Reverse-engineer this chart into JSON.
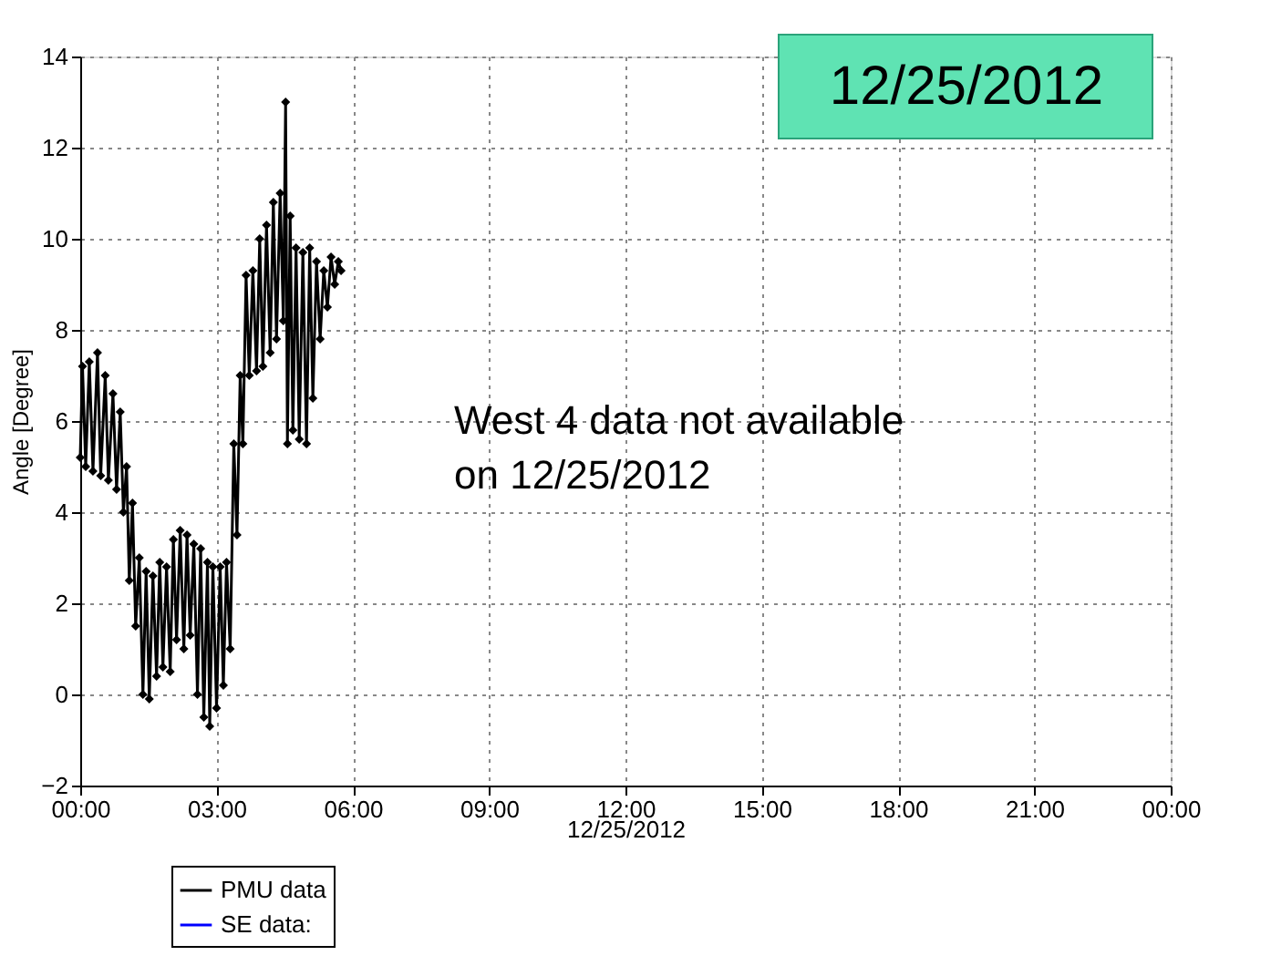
{
  "chart_data": {
    "type": "line",
    "xlabel": "12/25/2012",
    "ylabel": "Angle [Degree]",
    "annotations": [
      "12/25/2012",
      "West 4 data not available\non 12/25/2012"
    ],
    "xlim": [
      0,
      24
    ],
    "xticks": [
      {
        "value": 0,
        "label": "00:00"
      },
      {
        "value": 3,
        "label": "03:00"
      },
      {
        "value": 6,
        "label": "06:00"
      },
      {
        "value": 9,
        "label": "09:00"
      },
      {
        "value": 12,
        "label": "12:00"
      },
      {
        "value": 15,
        "label": "15:00"
      },
      {
        "value": 18,
        "label": "18:00"
      },
      {
        "value": 21,
        "label": "21:00"
      },
      {
        "value": 24,
        "label": "00:00"
      }
    ],
    "ylim": [
      -2,
      14
    ],
    "yticks": [
      -2,
      0,
      2,
      4,
      6,
      8,
      10,
      12,
      14
    ],
    "grid": true,
    "legend": "bottom",
    "marker": "diamond",
    "line_style": "solid",
    "series": [
      {
        "name": "PMU data",
        "color": "#000000",
        "x": [
          0.0,
          0.05,
          0.12,
          0.2,
          0.28,
          0.38,
          0.45,
          0.55,
          0.62,
          0.72,
          0.8,
          0.88,
          0.95,
          1.02,
          1.08,
          1.15,
          1.22,
          1.3,
          1.38,
          1.45,
          1.52,
          1.6,
          1.68,
          1.75,
          1.82,
          1.9,
          1.98,
          2.05,
          2.12,
          2.2,
          2.28,
          2.35,
          2.42,
          2.5,
          2.58,
          2.65,
          2.72,
          2.8,
          2.85,
          2.92,
          3.0,
          3.08,
          3.15,
          3.22,
          3.3,
          3.38,
          3.45,
          3.52,
          3.58,
          3.65,
          3.72,
          3.8,
          3.88,
          3.95,
          4.02,
          4.1,
          4.18,
          4.25,
          4.32,
          4.4,
          4.47,
          4.52,
          4.56,
          4.62,
          4.68,
          4.75,
          4.82,
          4.9,
          4.98,
          5.05,
          5.12,
          5.2,
          5.28,
          5.36,
          5.44,
          5.52,
          5.6,
          5.68,
          5.74
        ],
        "values": [
          5.2,
          7.2,
          5.0,
          7.3,
          4.9,
          7.5,
          4.8,
          7.0,
          4.7,
          6.6,
          4.5,
          6.2,
          4.0,
          5.0,
          2.5,
          4.2,
          1.5,
          3.0,
          0.0,
          2.7,
          -0.1,
          2.6,
          0.4,
          2.9,
          0.6,
          2.8,
          0.5,
          3.4,
          1.2,
          3.6,
          1.0,
          3.5,
          1.3,
          3.3,
          0.0,
          3.2,
          -0.5,
          2.9,
          -0.7,
          2.8,
          -0.3,
          2.8,
          0.2,
          2.9,
          1.0,
          5.5,
          3.5,
          7.0,
          5.5,
          9.2,
          7.0,
          9.3,
          7.1,
          10.0,
          7.2,
          10.3,
          7.5,
          10.8,
          7.8,
          11.0,
          8.2,
          13.0,
          5.5,
          10.5,
          5.8,
          9.8,
          5.6,
          9.7,
          5.5,
          9.8,
          6.5,
          9.5,
          7.8,
          9.3,
          8.5,
          9.6,
          9.0,
          9.5,
          9.3
        ]
      },
      {
        "name": "SE data:",
        "color": "#0000ff"
      }
    ]
  }
}
